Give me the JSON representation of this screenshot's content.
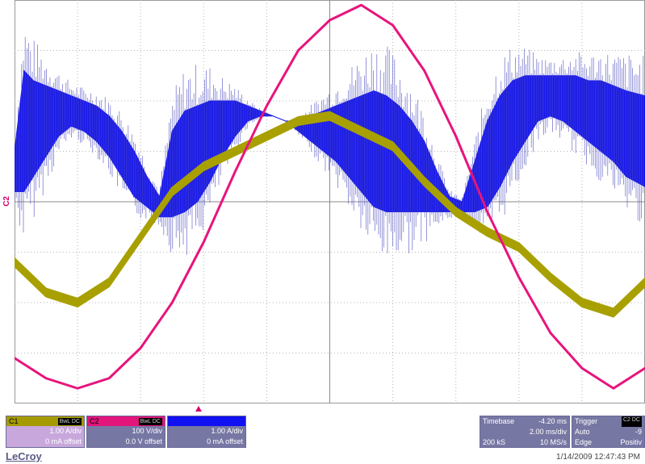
{
  "chart_data": {
    "type": "line",
    "title": "",
    "xlabel": "",
    "ylabel": "",
    "grid": true,
    "xdivs": 10,
    "ydivs": 8,
    "xlim": [
      0,
      10
    ],
    "ylim": [
      -4,
      4
    ],
    "series": [
      {
        "color": "#1414f0",
        "style": "switching-band",
        "x": [
          0,
          0.15,
          0.3,
          0.5,
          0.7,
          0.9,
          1.1,
          1.3,
          1.5,
          1.7,
          1.9,
          2.1,
          2.3,
          2.5,
          2.7,
          2.9,
          3.1,
          3.3,
          3.5,
          3.7,
          3.9,
          4.1,
          4.3,
          4.5,
          4.7,
          4.9,
          5.1,
          5.3,
          5.5,
          5.7,
          5.9,
          6.1,
          6.3,
          6.5,
          6.7,
          6.9,
          7.1,
          7.3,
          7.5,
          7.7,
          7.9,
          8.1,
          8.3,
          8.5,
          8.7,
          8.9,
          9.1,
          9.3,
          9.5,
          9.7,
          10
        ],
        "upper": [
          1.0,
          2.6,
          2.4,
          2.3,
          2.2,
          2.1,
          2.0,
          1.9,
          1.7,
          1.4,
          1.0,
          0.5,
          0.1,
          1.4,
          1.8,
          1.9,
          2.0,
          2.0,
          2.0,
          1.9,
          1.8,
          1.7,
          1.6,
          1.6,
          1.7,
          1.8,
          1.9,
          2.0,
          2.1,
          2.2,
          2.1,
          1.9,
          1.6,
          1.2,
          0.6,
          0.1,
          0.0,
          0.8,
          1.6,
          2.1,
          2.4,
          2.5,
          2.5,
          2.5,
          2.5,
          2.5,
          2.4,
          2.4,
          2.3,
          2.2,
          2.1
        ],
        "lower": [
          0.2,
          0.2,
          0.5,
          0.9,
          1.3,
          1.5,
          1.4,
          1.2,
          0.9,
          0.5,
          0.1,
          -0.1,
          -0.3,
          -0.3,
          -0.2,
          0.0,
          0.4,
          0.9,
          1.3,
          1.6,
          1.7,
          1.7,
          1.6,
          1.4,
          1.2,
          1.0,
          0.8,
          0.5,
          0.2,
          -0.1,
          -0.2,
          -0.2,
          -0.2,
          -0.2,
          -0.2,
          -0.2,
          -0.2,
          -0.2,
          -0.1,
          0.3,
          0.8,
          1.2,
          1.6,
          1.7,
          1.6,
          1.4,
          1.2,
          1.0,
          0.8,
          0.5,
          0.3
        ]
      },
      {
        "color": "#a8a000",
        "style": "band",
        "x": [
          0,
          0.5,
          1.0,
          1.5,
          2.0,
          2.5,
          3.0,
          3.5,
          4.0,
          4.5,
          5.0,
          5.5,
          6.0,
          6.5,
          7.0,
          7.5,
          8.0,
          8.5,
          9.0,
          9.5,
          10
        ],
        "values": [
          -1.2,
          -1.8,
          -2.0,
          -1.6,
          -0.7,
          0.2,
          0.7,
          1.0,
          1.3,
          1.6,
          1.7,
          1.4,
          1.1,
          0.4,
          -0.2,
          -0.6,
          -0.9,
          -1.5,
          -2.0,
          -2.2,
          -1.6
        ],
        "halfwidth": 0.08
      },
      {
        "color": "#e8147c",
        "style": "line",
        "x": [
          0,
          0.5,
          1.0,
          1.5,
          2.0,
          2.5,
          3.0,
          3.5,
          4.0,
          4.5,
          5.0,
          5.5,
          6.0,
          6.5,
          7.0,
          7.5,
          8.0,
          8.5,
          9.0,
          9.5,
          10
        ],
        "values": [
          -3.1,
          -3.5,
          -3.7,
          -3.5,
          -2.9,
          -2.0,
          -0.8,
          0.6,
          1.9,
          3.0,
          3.6,
          3.9,
          3.5,
          2.6,
          1.3,
          -0.2,
          -1.5,
          -2.6,
          -3.3,
          -3.7,
          -3.3
        ]
      }
    ]
  },
  "marker_label": "C2",
  "panels": {
    "c1": {
      "name": "C1",
      "badge": "BwL DC",
      "scale": "1.00 A/div",
      "offset": "0 mA offset"
    },
    "c2": {
      "name": "C2",
      "badge": "BwL DC",
      "scale": "100 V/div",
      "offset": "0.0 V offset"
    },
    "c3": {
      "name": "",
      "badge": "",
      "scale": "1.00 A/div",
      "offset": "0 mA offset"
    },
    "timebase": {
      "label": "Timebase",
      "delay": "-4.20 ms",
      "rate": "2.00 ms/div",
      "samples": "200 kS",
      "srate": "10 MS/s"
    },
    "trigger": {
      "label": "Trigger",
      "badge": "C2 DC",
      "mode": "Auto",
      "level": "-9",
      "type": "Edge",
      "slope": "Positiv"
    }
  },
  "brand": "LeCroy",
  "datetime": "1/14/2009 12:47:43 PM"
}
